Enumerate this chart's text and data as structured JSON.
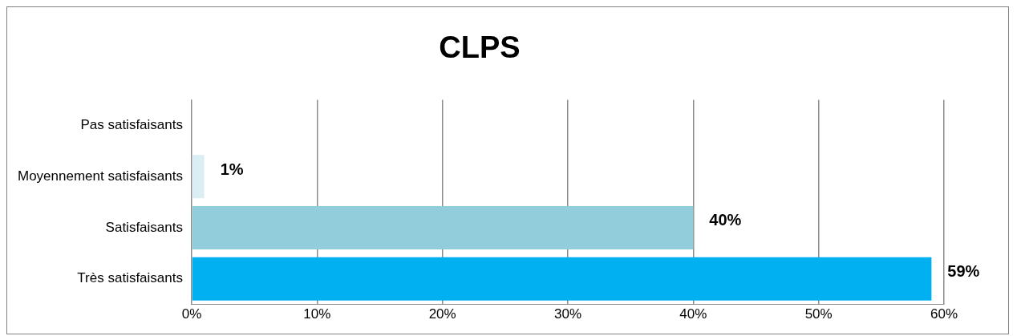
{
  "chart_data": {
    "type": "bar",
    "orientation": "horizontal",
    "title": "CLPS",
    "categories": [
      "Pas satisfaisants",
      "Moyennement satisfaisants",
      "Satisfaisants",
      "Très satisfaisants"
    ],
    "values": [
      0,
      1,
      40,
      59
    ],
    "colors": [
      "#00b0f0",
      "#dbeef4",
      "#92cddc",
      "#00b0f0"
    ],
    "value_labels": [
      null,
      "1%",
      "40%",
      "59%"
    ],
    "xlim": [
      0,
      60
    ],
    "xticks": [
      {
        "value": 0,
        "label": "0%"
      },
      {
        "value": 10,
        "label": "10%"
      },
      {
        "value": 20,
        "label": "20%"
      },
      {
        "value": 30,
        "label": "30%"
      },
      {
        "value": 40,
        "label": "40%"
      },
      {
        "value": 50,
        "label": "50%"
      },
      {
        "value": 60,
        "label": "60%"
      }
    ],
    "grid": "x",
    "legend": false
  }
}
